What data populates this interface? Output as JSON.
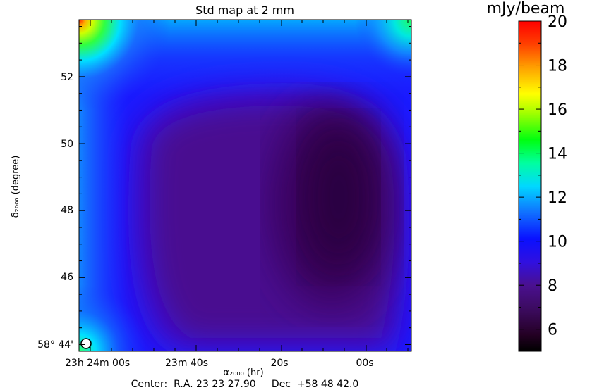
{
  "chart_data": {
    "type": "heatmap",
    "title": "Std map at 2 mm",
    "xlabel": "α₂₀₀₀ (hr)",
    "ylabel": "δ₂₀₀₀ (degree)",
    "center_text": "Center:  R.A. 23 23 27.90     Dec  +58 48 42.0",
    "x_tick_labels": [
      "23h 24m 00s",
      "23m 40s",
      "20s",
      "00s"
    ],
    "y_tick_labels": [
      "58° 44'",
      "46",
      "48",
      "50",
      "52"
    ],
    "y_range_arcmin": [
      43.8,
      53.7
    ],
    "colorbar": {
      "label": "mJy/beam",
      "range": [
        5,
        20
      ],
      "ticks": [
        6,
        8,
        10,
        12,
        14,
        16,
        18,
        20
      ],
      "colormap": "rainbow"
    },
    "grid": false,
    "legend": "none",
    "beam_marker": "white circle, lower-left corner",
    "values_description": "minimum ≈6 mJy/beam right-centre, rising to ≈20 mJy/beam at top-left corner"
  }
}
